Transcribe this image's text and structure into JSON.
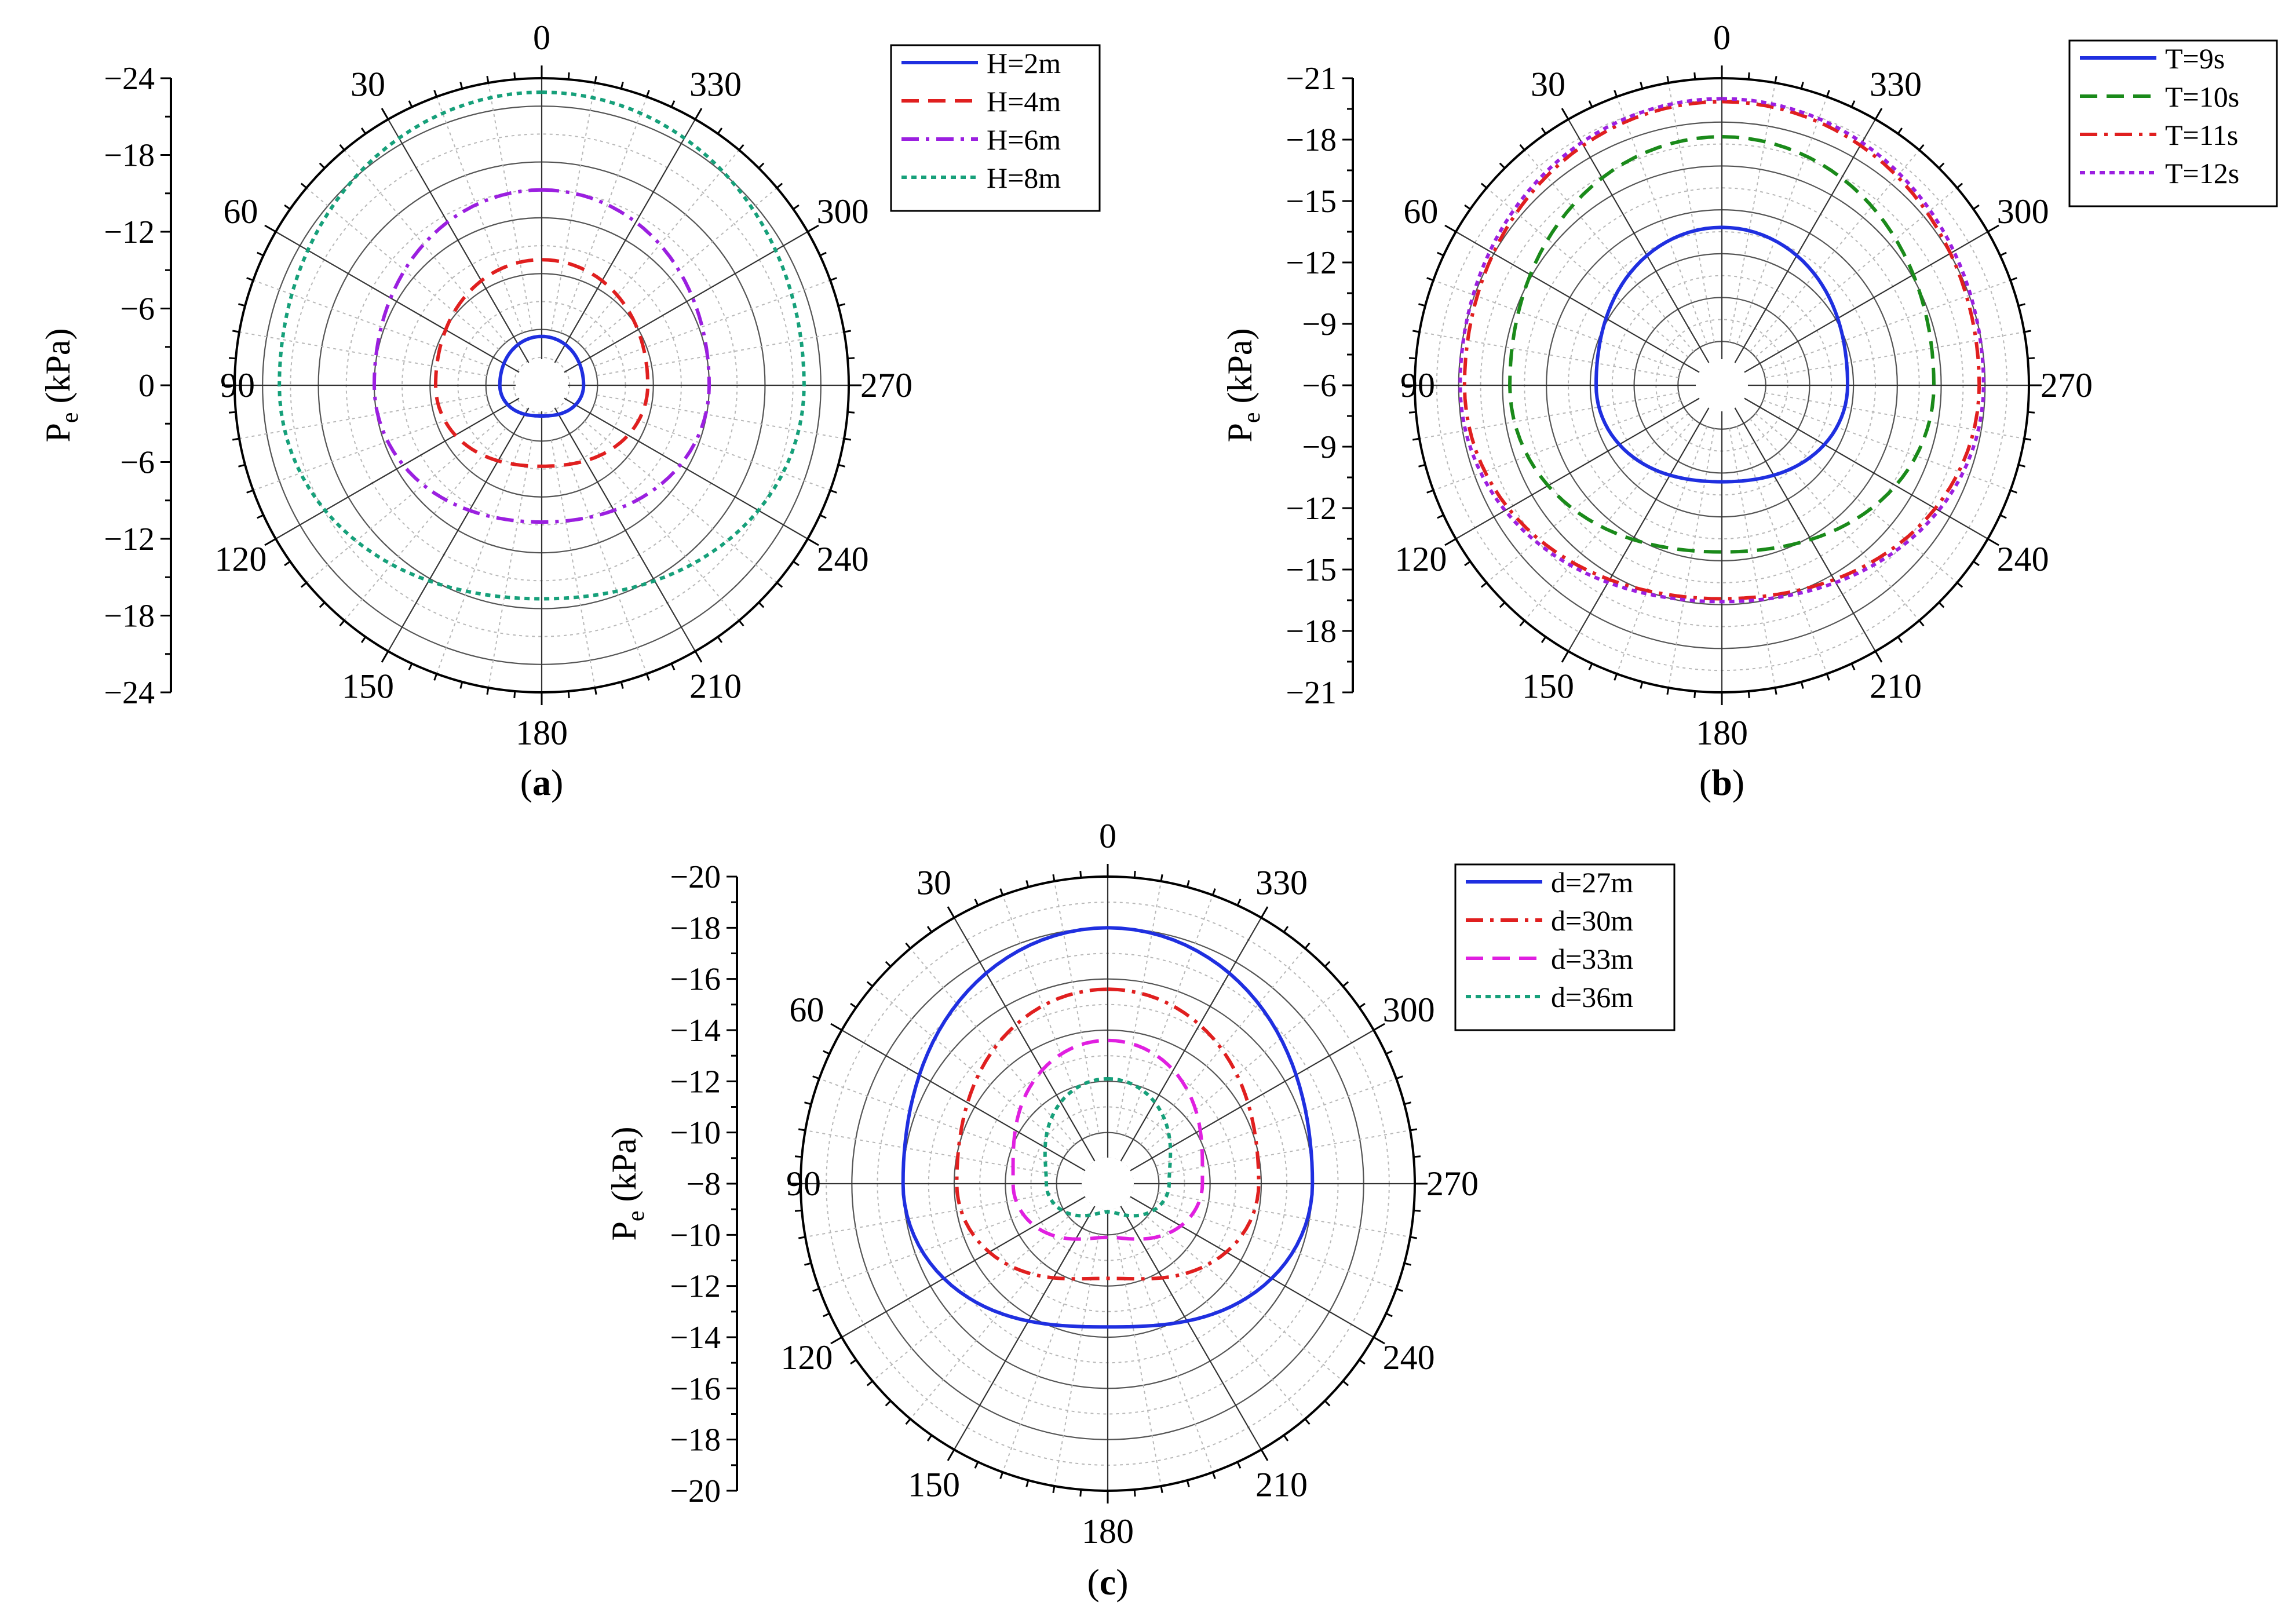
{
  "chart_data": [
    {
      "type": "polar-line",
      "caption": "(a)",
      "caption_letter": "a",
      "ylabel": "P",
      "ylabel_sub": "e",
      "ylabel_unit": "(kPa)",
      "radial_tick_labels_upper": [
        "−24",
        "−18",
        "−12",
        "−6",
        "0"
      ],
      "radial_tick_labels_lower": [
        "0",
        "−6",
        "−12",
        "−18",
        "−24"
      ],
      "center_offset": 2,
      "rmax": 24,
      "rings": [
        2,
        6,
        10,
        14,
        18,
        22
      ],
      "angle_labels": [
        "0",
        "30",
        "60",
        "90",
        "120",
        "150",
        "180",
        "210",
        "240",
        "270",
        "300",
        "330"
      ],
      "grid": true,
      "legend_position": "top-right",
      "series": [
        {
          "name": "H=2m",
          "color": "#1f2fe0",
          "dash": "solid",
          "top": 5.5,
          "bottom": 4.2,
          "side": 5.0
        },
        {
          "name": "H=4m",
          "color": "#e01f1f",
          "dash": "dashed",
          "top": 11,
          "bottom": 7.8,
          "side": 9.6
        },
        {
          "name": "H=6m",
          "color": "#9b1fe0",
          "dash": "dashdot",
          "top": 16,
          "bottom": 11.8,
          "side": 14.0
        },
        {
          "name": "H=8m",
          "color": "#16a07a",
          "dash": "dotted",
          "top": 23,
          "bottom": 17.3,
          "side": 20.8
        }
      ]
    },
    {
      "type": "polar-line",
      "caption": "(b)",
      "caption_letter": "b",
      "ylabel": "P",
      "ylabel_sub": "e",
      "ylabel_unit": "(kPa)",
      "radial_tick_labels_upper": [
        "−21",
        "−18",
        "−15",
        "−12",
        "−9",
        "−6"
      ],
      "radial_tick_labels_lower": [
        "−6",
        "−9",
        "−12",
        "−15",
        "−18",
        "−21"
      ],
      "center_offset": 0,
      "rmax": 21,
      "rings": [
        3,
        6,
        9,
        12,
        15,
        18
      ],
      "angle_labels": [
        "0",
        "30",
        "60",
        "90",
        "120",
        "150",
        "180",
        "210",
        "240",
        "270",
        "300",
        "330"
      ],
      "grid": true,
      "legend_position": "top-right",
      "series": [
        {
          "name": "T=9s",
          "color": "#1f2fe0",
          "dash": "solid",
          "top": 10.8,
          "bottom": 6.6,
          "side": 8.6
        },
        {
          "name": "T=10s",
          "color": "#1a8a1a",
          "dash": "dashed",
          "top": 17,
          "bottom": 11.4,
          "side": 14.5
        },
        {
          "name": "T=11s",
          "color": "#e01f1f",
          "dash": "dashdot",
          "top": 19.4,
          "bottom": 14.6,
          "side": 17.6
        },
        {
          "name": "T=12s",
          "color": "#9b1fe0",
          "dash": "dotted",
          "top": 19.6,
          "bottom": 14.8,
          "side": 17.9
        }
      ]
    },
    {
      "type": "polar-line",
      "caption": "(c)",
      "caption_letter": "c",
      "ylabel": "P",
      "ylabel_sub": "e",
      "ylabel_unit": "(kPa)",
      "radial_tick_labels_upper": [
        "−20",
        "−18",
        "−16",
        "−14",
        "−12",
        "−10",
        "−8"
      ],
      "radial_tick_labels_lower": [
        "−8",
        "−10",
        "−12",
        "−14",
        "−16",
        "−18",
        "−20"
      ],
      "center_offset": 8,
      "rmax": 20,
      "rings": [
        10,
        12,
        14,
        16,
        18
      ],
      "angle_labels": [
        "0",
        "30",
        "60",
        "90",
        "120",
        "150",
        "180",
        "210",
        "240",
        "270",
        "300",
        "330"
      ],
      "grid": true,
      "legend_position": "top-right",
      "series": [
        {
          "name": "d=27m",
          "color": "#1f2fe0",
          "dash": "solid",
          "top": 18,
          "bottom": 13.6,
          "side": 16.0
        },
        {
          "name": "d=30m",
          "color": "#e01f1f",
          "dash": "dashdot",
          "top": 15.6,
          "bottom": 11.7,
          "side": 13.9
        },
        {
          "name": "d=33m",
          "color": "#e01fe0",
          "dash": "dashed",
          "top": 13.6,
          "bottom": 10.1,
          "side": 11.7
        },
        {
          "name": "d=36m",
          "color": "#16a07a",
          "dash": "dotted",
          "top": 12.1,
          "bottom": 9.1,
          "side": 10.4
        }
      ]
    }
  ]
}
